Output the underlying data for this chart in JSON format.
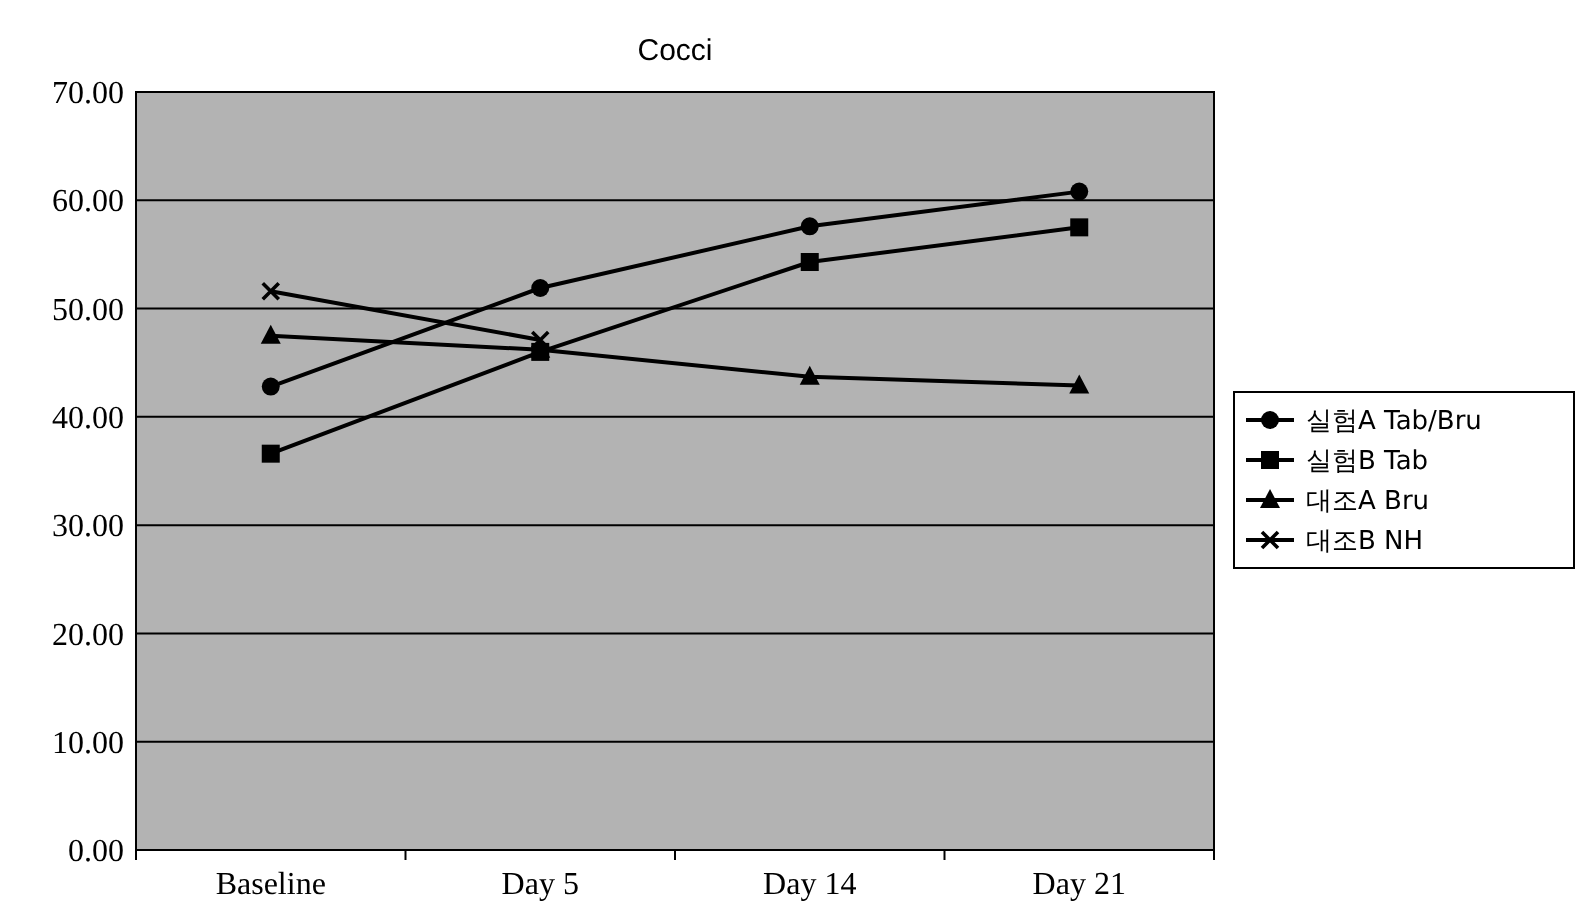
{
  "chart_data": {
    "type": "line",
    "title": "Cocci",
    "categories": [
      "Baseline",
      "Day 5",
      "Day 14",
      "Day 21"
    ],
    "series": [
      {
        "name": "실험A Tab/Bru",
        "color": "#000000",
        "marker": "circle",
        "values": [
          42.8,
          51.9,
          57.6,
          60.8
        ]
      },
      {
        "name": "실험B Tab",
        "color": "#000000",
        "marker": "square",
        "values": [
          36.6,
          46.0,
          54.3,
          57.5
        ]
      },
      {
        "name": "대조A Bru",
        "color": "#000000",
        "marker": "triangle",
        "values": [
          47.5,
          46.2,
          43.7,
          42.9
        ]
      },
      {
        "name": "대조B NH",
        "color": "#000000",
        "marker": "cross",
        "values": [
          51.6,
          47.1,
          null,
          null
        ]
      }
    ],
    "ylim": [
      0,
      70
    ],
    "yticks": [
      {
        "value": 0,
        "label": "0.00"
      },
      {
        "value": 10,
        "label": "10.00"
      },
      {
        "value": 20,
        "label": "20.00"
      },
      {
        "value": 30,
        "label": "30.00"
      },
      {
        "value": 40,
        "label": "40.00"
      },
      {
        "value": 50,
        "label": "50.00"
      },
      {
        "value": 60,
        "label": "60.00"
      },
      {
        "value": 70,
        "label": "70.00"
      }
    ],
    "grid": "y",
    "legend": "right",
    "line_style": "solid"
  }
}
